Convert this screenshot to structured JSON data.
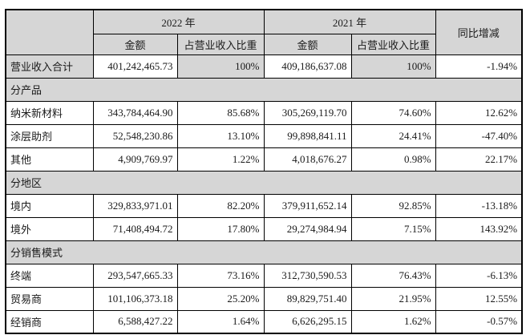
{
  "colors": {
    "shaded_bg": "#d6d6d6",
    "border": "#000000",
    "text": "#1a1a1a"
  },
  "table": {
    "year_headers": {
      "y2022": "2022 年",
      "y2021": "2021 年",
      "yoy": "同比增减"
    },
    "sub_headers": {
      "amount": "金额",
      "proportion": "占营业收入比重"
    },
    "rows": [
      {
        "type": "data",
        "highlight": true,
        "label": "营业收入合计",
        "a2022": "401,242,465.73",
        "p2022": "100%",
        "a2021": "409,186,637.08",
        "p2021": "100%",
        "yoy": "-1.94%"
      },
      {
        "type": "section",
        "label": "分产品"
      },
      {
        "type": "data",
        "label": "纳米新材料",
        "a2022": "343,784,464.90",
        "p2022": "85.68%",
        "a2021": "305,269,119.70",
        "p2021": "74.60%",
        "yoy": "12.62%"
      },
      {
        "type": "data",
        "label": "涂层助剂",
        "a2022": "52,548,230.86",
        "p2022": "13.10%",
        "a2021": "99,898,841.11",
        "p2021": "24.41%",
        "yoy": "-47.40%"
      },
      {
        "type": "data",
        "label": "其他",
        "a2022": "4,909,769.97",
        "p2022": "1.22%",
        "a2021": "4,018,676.27",
        "p2021": "0.98%",
        "yoy": "22.17%"
      },
      {
        "type": "section",
        "label": "分地区"
      },
      {
        "type": "data",
        "label": "境内",
        "a2022": "329,833,971.01",
        "p2022": "82.20%",
        "a2021": "379,911,652.14",
        "p2021": "92.85%",
        "yoy": "-13.18%"
      },
      {
        "type": "data",
        "label": "境外",
        "a2022": "71,408,494.72",
        "p2022": "17.80%",
        "a2021": "29,274,984.94",
        "p2021": "7.15%",
        "yoy": "143.92%"
      },
      {
        "type": "section",
        "label": "分销售模式"
      },
      {
        "type": "data",
        "label": "终端",
        "a2022": "293,547,665.33",
        "p2022": "73.16%",
        "a2021": "312,730,590.53",
        "p2021": "76.43%",
        "yoy": "-6.13%"
      },
      {
        "type": "data",
        "label": "贸易商",
        "a2022": "101,106,373.18",
        "p2022": "25.20%",
        "a2021": "89,829,751.40",
        "p2021": "21.95%",
        "yoy": "12.55%"
      },
      {
        "type": "data",
        "label": "经销商",
        "a2022": "6,588,427.22",
        "p2022": "1.64%",
        "a2021": "6,626,295.15",
        "p2021": "1.62%",
        "yoy": "-0.57%"
      }
    ]
  }
}
